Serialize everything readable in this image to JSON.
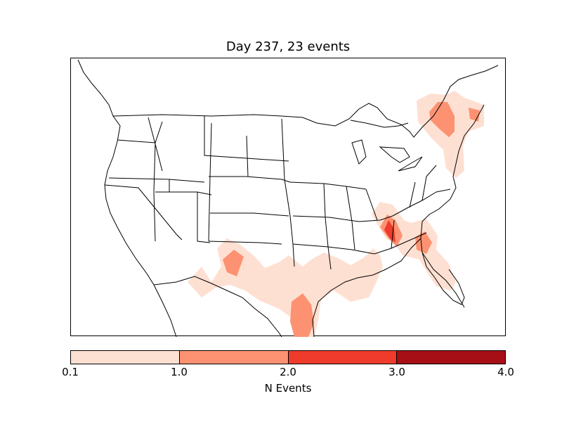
{
  "map": {
    "title": "Day 237, 23 events",
    "colors": {
      "level_1": "#fee0d2",
      "level_2": "#fc9272",
      "level_3": "#ef3b2c",
      "level_4": "#a50f15",
      "border": "#000000"
    }
  },
  "colorbar": {
    "label": "N Events",
    "ticks": [
      "0.1",
      "1.0",
      "2.0",
      "3.0",
      "4.0"
    ],
    "levels": [
      {
        "from": 0.1,
        "to": 1.0,
        "color": "#fee0d2"
      },
      {
        "from": 1.0,
        "to": 2.0,
        "color": "#fc9272"
      },
      {
        "from": 2.0,
        "to": 3.0,
        "color": "#ef3b2c"
      },
      {
        "from": 3.0,
        "to": 4.0,
        "color": "#a50f15"
      }
    ]
  }
}
